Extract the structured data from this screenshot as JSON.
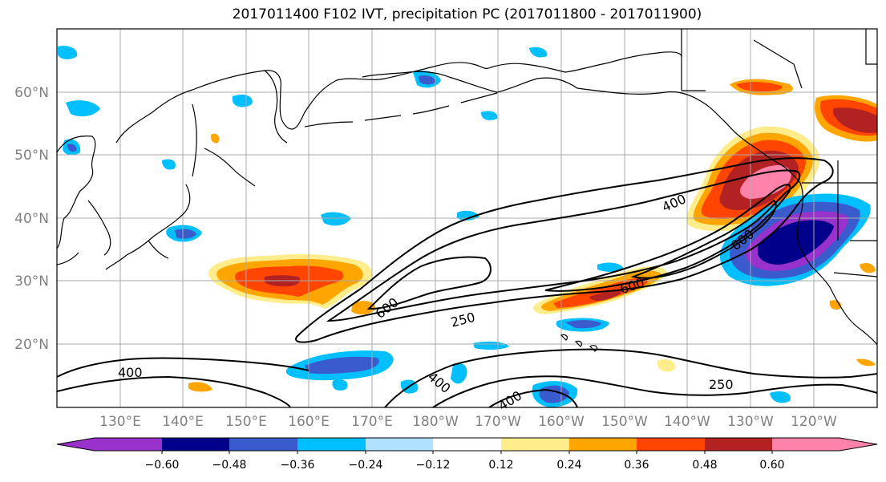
{
  "title": "2017011400 F102 IVT, precipitation PC (2017011800 - 2017011900)",
  "lat_labels": [
    "60°N",
    "50°N",
    "40°N",
    "30°N",
    "20°N"
  ],
  "lon_labels": [
    "130°E",
    "140°E",
    "150°E",
    "160°E",
    "170°E",
    "180°W",
    "170°W",
    "160°W",
    "150°W",
    "140°W",
    "130°W",
    "120°W"
  ],
  "ivt_contour_labels": [
    "400",
    "600",
    "800",
    "250",
    "600",
    "400",
    "250",
    "400",
    "400"
  ],
  "colorbar": {
    "ticks": [
      "−0.60",
      "−0.48",
      "−0.36",
      "−0.24",
      "−0.12",
      "0.12",
      "0.24",
      "0.36",
      "0.48",
      "0.60"
    ],
    "colors": [
      "#9932cc",
      "#00008b",
      "#3a5bcd",
      "#00bfff",
      "#b0e2ff",
      "#ffffff",
      "#ffec8b",
      "#ffa500",
      "#ff4500",
      "#b22222",
      "#ff82ab"
    ]
  },
  "colors": {
    "land_outline": "#000000",
    "grid": "#a9a9a9",
    "axis_labels": "#808080"
  }
}
